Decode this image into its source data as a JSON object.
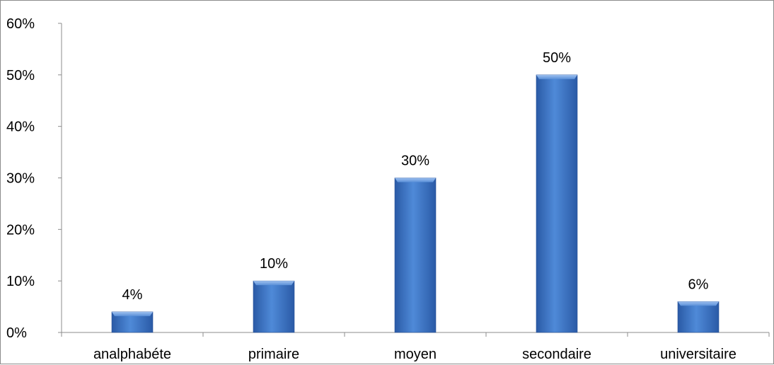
{
  "chart_data": {
    "type": "bar",
    "categories": [
      "analphabéte",
      "primaire",
      "moyen",
      "secondaire",
      "universitaire"
    ],
    "values": [
      4,
      10,
      30,
      50,
      6
    ],
    "data_labels": [
      "4%",
      "10%",
      "30%",
      "50%",
      "6%"
    ],
    "y_ticks": [
      "0%",
      "10%",
      "20%",
      "30%",
      "40%",
      "50%",
      "60%"
    ],
    "ylim": [
      0,
      60
    ],
    "title": "",
    "xlabel": "",
    "ylabel": "",
    "grid": false,
    "legend": "none",
    "bar_color": "#3b73c4"
  }
}
